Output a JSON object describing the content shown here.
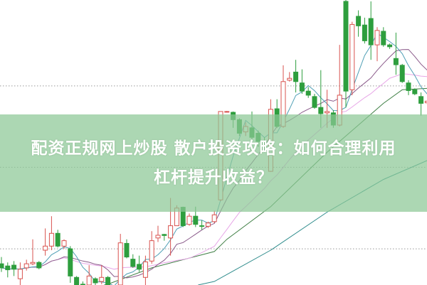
{
  "banner": {
    "title_line1": "配资正规网上炒股 散户投资攻略：如何合理利用",
    "title_line2": "杠杆提升收益？"
  },
  "chart_data": {
    "type": "candlestick",
    "title": "",
    "xlabel": "",
    "ylabel": "",
    "ylim": [
      15.2,
      120
    ],
    "grid": "horizontal-dotted",
    "gridlines": [
      88.4,
      58.5,
      28.5
    ],
    "up_color": "#d9534f",
    "down_color": "#2e9e3e",
    "candles_ohlc": [
      [
        23.0,
        25.5,
        20.0,
        21.5
      ],
      [
        22.2,
        23.5,
        18.0,
        20.8
      ],
      [
        22.5,
        24.0,
        18.5,
        21.0
      ],
      [
        17.5,
        23.5,
        14.0,
        21.0
      ],
      [
        21.5,
        24.5,
        20.5,
        23.0
      ],
      [
        23.0,
        32.0,
        22.5,
        23.5
      ],
      [
        23.5,
        24.0,
        21.0,
        21.5
      ],
      [
        28.0,
        36.0,
        26.0,
        29.5
      ],
      [
        29.5,
        40.5,
        28.0,
        34.2
      ],
      [
        34.2,
        35.5,
        29.0,
        29.5
      ],
      [
        29.5,
        32.0,
        28.5,
        31.5
      ],
      [
        28.5,
        29.5,
        16.0,
        18.5
      ],
      [
        18.0,
        18.5,
        14.0,
        14.5
      ],
      [
        15.5,
        16.5,
        12.0,
        14.5
      ],
      [
        14.0,
        22.5,
        13.0,
        18.5
      ],
      [
        17.5,
        18.0,
        13.5,
        16.0
      ],
      [
        16.5,
        22.5,
        15.5,
        18.0
      ],
      [
        18.0,
        18.5,
        12.0,
        12.5
      ],
      [
        12.5,
        13.5,
        8.0,
        9.5
      ],
      [
        10.0,
        34.0,
        7.5,
        30.7
      ],
      [
        30.5,
        32.0,
        25.0,
        25.5
      ],
      [
        24.7,
        26.5,
        21.5,
        22.0
      ],
      [
        22.8,
        26.0,
        20.0,
        21.0
      ],
      [
        18.0,
        26.0,
        14.0,
        23.7
      ],
      [
        24.0,
        35.0,
        23.0,
        31.5
      ],
      [
        32.5,
        37.0,
        31.0,
        33.5
      ],
      [
        33.8,
        34.0,
        31.5,
        33.4
      ],
      [
        32.5,
        47.2,
        26.0,
        37.0
      ],
      [
        37.0,
        44.5,
        37.0,
        43.5
      ],
      [
        43.8,
        44.0,
        36.5,
        37.0
      ],
      [
        37.5,
        41.5,
        37.0,
        40.5
      ],
      [
        40.5,
        44.0,
        36.5,
        37.5
      ],
      [
        37.0,
        39.0,
        35.5,
        36.8
      ],
      [
        36.8,
        38.5,
        36.2,
        38.0
      ],
      [
        38.5,
        42.5,
        38.0,
        41.0
      ],
      [
        46.5,
        79.0,
        46.0,
        79.0
      ],
      [
        78.8,
        79.2,
        78.6,
        79.0
      ],
      [
        78.7,
        79.0,
        73.0,
        76.0
      ],
      [
        76.0,
        76.5,
        70.0,
        71.0
      ],
      [
        71.5,
        75.0,
        70.0,
        73.5
      ],
      [
        73.0,
        79.0,
        68.5,
        69.5
      ],
      [
        71.0,
        72.0,
        66.0,
        68.0
      ],
      [
        68.0,
        69.5,
        64.0,
        65.0
      ],
      [
        57.0,
        83.5,
        56.8,
        79.8
      ],
      [
        80.0,
        83.5,
        73.0,
        73.5
      ],
      [
        73.5,
        96.0,
        73.0,
        90.0
      ],
      [
        90.5,
        93.5,
        90.0,
        91.2
      ],
      [
        93.5,
        98.0,
        86.0,
        90.0
      ],
      [
        89.5,
        94.5,
        85.5,
        86.5
      ],
      [
        86.5,
        88.0,
        84.0,
        85.0
      ],
      [
        84.5,
        85.5,
        80.0,
        80.5
      ],
      [
        80.5,
        94.2,
        73.0,
        78.2
      ],
      [
        78.5,
        87.0,
        73.0,
        79.0
      ],
      [
        78.5,
        79.5,
        73.0,
        74.0
      ],
      [
        74.0,
        103.5,
        73.5,
        85.0
      ],
      [
        119.5,
        120.0,
        80.5,
        86.5
      ],
      [
        87.0,
        112.0,
        85.0,
        111.0
      ],
      [
        114.0,
        116.2,
        106.5,
        110.5
      ],
      [
        110.8,
        113.5,
        104.0,
        105.0
      ],
      [
        113.2,
        119.5,
        98.0,
        103.5
      ],
      [
        103.5,
        110.0,
        97.5,
        108.8
      ],
      [
        108.5,
        110.0,
        102.8,
        103.5
      ],
      [
        103.5,
        104.0,
        102.0,
        102.8
      ],
      [
        98.5,
        108.0,
        92.5,
        96.2
      ],
      [
        96.0,
        96.5,
        89.5,
        90.0
      ],
      [
        89.5,
        90.5,
        85.0,
        86.7
      ],
      [
        87.0,
        87.5,
        85.0,
        85.5
      ],
      [
        84.5,
        86.0,
        77.5,
        82.0
      ],
      [
        82.2,
        83.0,
        81.5,
        82.8
      ]
    ],
    "moving_averages": [
      {
        "period": 5,
        "color": "#4f9fb5"
      },
      {
        "period": 10,
        "color": "#8a5a8a"
      },
      {
        "period": 20,
        "color": "#e7a6e7"
      }
    ],
    "trend_lines": [
      {
        "color": "#3f7f45",
        "points": [
          [
            0,
            3.5
          ],
          [
            10,
            12
          ],
          [
            17,
            15.5
          ],
          [
            24,
            21.5
          ],
          [
            34,
            27.5
          ],
          [
            36,
            32
          ],
          [
            43,
            44
          ],
          [
            52,
            64
          ],
          [
            61,
            82
          ],
          [
            64,
            87
          ],
          [
            68,
            87.5
          ]
        ]
      },
      {
        "color": "#2e8c8c",
        "points": [
          [
            0,
            1.0
          ],
          [
            13,
            7.5
          ],
          [
            26,
            12.5
          ],
          [
            34,
            16.5
          ],
          [
            43,
            28
          ],
          [
            52,
            42
          ],
          [
            61,
            54
          ],
          [
            68,
            61
          ]
        ]
      }
    ]
  }
}
